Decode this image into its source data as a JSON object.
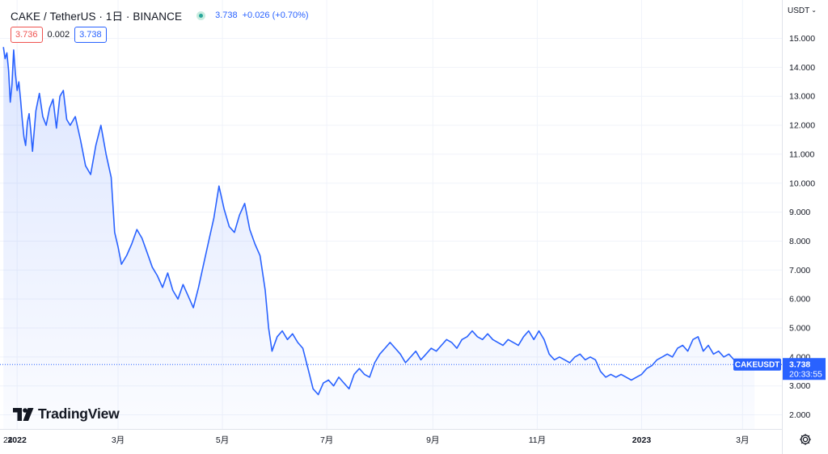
{
  "header": {
    "symbol_title": "CAKE / TetherUS · 1日 · BINANCE",
    "last_price": "3.738",
    "change": "+0.026 (+0.70%)",
    "market_status_icon": "market-open-dot-icon"
  },
  "quote": {
    "sell": "3.736",
    "spread": "0.002",
    "buy": "3.738"
  },
  "price_scale": {
    "currency": "USDT"
  },
  "price_label": {
    "symbol": "CAKEUSDT",
    "price": "3.738",
    "countdown": "20:33:55"
  },
  "branding": {
    "logo_text": "TradingView"
  },
  "colors": {
    "line": "#2962ff",
    "accent": "#2962ff",
    "negative": "#ef5350",
    "grid": "#f0f3fa",
    "axis_text": "#131722"
  },
  "chart_data": {
    "type": "area",
    "title": "CAKE / TetherUS · 1日 · BINANCE",
    "xlabel": "",
    "ylabel": "",
    "ylim": [
      1.5,
      15.5
    ],
    "y_ticks": [
      "15.000",
      "14.000",
      "13.000",
      "12.000",
      "11.000",
      "10.000",
      "9.000",
      "8.000",
      "7.000",
      "6.000",
      "5.000",
      "4.000",
      "3.000",
      "2.000"
    ],
    "y_tick_values": [
      15,
      14,
      13,
      12,
      11,
      10,
      9,
      8,
      7,
      6,
      5,
      4,
      3,
      2
    ],
    "x_ticks": [
      "24",
      "2022",
      "3月",
      "5月",
      "7月",
      "9月",
      "11月",
      "2023",
      "3月"
    ],
    "x_tick_dates": [
      "2021-12-24",
      "2022-01-01",
      "2022-03-01",
      "2022-05-01",
      "2022-07-01",
      "2022-09-01",
      "2022-11-01",
      "2023-01-01",
      "2023-03-01"
    ],
    "grid": true,
    "series": [
      {
        "points": [
          [
            "2021-12-24",
            14.7
          ],
          [
            "2021-12-25",
            14.3
          ],
          [
            "2021-12-26",
            14.5
          ],
          [
            "2021-12-27",
            13.9
          ],
          [
            "2021-12-28",
            12.8
          ],
          [
            "2021-12-29",
            13.4
          ],
          [
            "2021-12-30",
            14.6
          ],
          [
            "2021-12-31",
            13.8
          ],
          [
            "2022-01-01",
            13.2
          ],
          [
            "2022-01-02",
            13.5
          ],
          [
            "2022-01-03",
            12.9
          ],
          [
            "2022-01-04",
            12.2
          ],
          [
            "2022-01-05",
            11.6
          ],
          [
            "2022-01-06",
            11.3
          ],
          [
            "2022-01-07",
            12.1
          ],
          [
            "2022-01-08",
            12.4
          ],
          [
            "2022-01-09",
            11.8
          ],
          [
            "2022-01-10",
            11.1
          ],
          [
            "2022-01-12",
            12.5
          ],
          [
            "2022-01-14",
            13.1
          ],
          [
            "2022-01-16",
            12.3
          ],
          [
            "2022-01-18",
            12.0
          ],
          [
            "2022-01-20",
            12.6
          ],
          [
            "2022-01-22",
            12.9
          ],
          [
            "2022-01-24",
            11.9
          ],
          [
            "2022-01-26",
            13.0
          ],
          [
            "2022-01-28",
            13.2
          ],
          [
            "2022-01-30",
            12.2
          ],
          [
            "2022-02-01",
            12.0
          ],
          [
            "2022-02-04",
            12.3
          ],
          [
            "2022-02-07",
            11.5
          ],
          [
            "2022-02-10",
            10.6
          ],
          [
            "2022-02-13",
            10.3
          ],
          [
            "2022-02-16",
            11.3
          ],
          [
            "2022-02-19",
            12.0
          ],
          [
            "2022-02-22",
            11.0
          ],
          [
            "2022-02-25",
            10.2
          ],
          [
            "2022-02-27",
            8.3
          ],
          [
            "2022-03-01",
            7.8
          ],
          [
            "2022-03-03",
            7.2
          ],
          [
            "2022-03-06",
            7.5
          ],
          [
            "2022-03-09",
            7.9
          ],
          [
            "2022-03-12",
            8.4
          ],
          [
            "2022-03-15",
            8.1
          ],
          [
            "2022-03-18",
            7.6
          ],
          [
            "2022-03-21",
            7.1
          ],
          [
            "2022-03-24",
            6.8
          ],
          [
            "2022-03-27",
            6.4
          ],
          [
            "2022-03-30",
            6.9
          ],
          [
            "2022-04-02",
            6.3
          ],
          [
            "2022-04-05",
            6.0
          ],
          [
            "2022-04-08",
            6.5
          ],
          [
            "2022-04-11",
            6.1
          ],
          [
            "2022-04-14",
            5.7
          ],
          [
            "2022-04-17",
            6.4
          ],
          [
            "2022-04-20",
            7.2
          ],
          [
            "2022-04-23",
            8.0
          ],
          [
            "2022-04-26",
            8.8
          ],
          [
            "2022-04-29",
            9.9
          ],
          [
            "2022-05-02",
            9.1
          ],
          [
            "2022-05-05",
            8.5
          ],
          [
            "2022-05-08",
            8.3
          ],
          [
            "2022-05-11",
            8.9
          ],
          [
            "2022-05-14",
            9.3
          ],
          [
            "2022-05-17",
            8.4
          ],
          [
            "2022-05-20",
            7.9
          ],
          [
            "2022-05-23",
            7.5
          ],
          [
            "2022-05-26",
            6.3
          ],
          [
            "2022-05-28",
            5.0
          ],
          [
            "2022-05-30",
            4.2
          ],
          [
            "2022-06-02",
            4.7
          ],
          [
            "2022-06-05",
            4.9
          ],
          [
            "2022-06-08",
            4.6
          ],
          [
            "2022-06-11",
            4.8
          ],
          [
            "2022-06-14",
            4.5
          ],
          [
            "2022-06-17",
            4.3
          ],
          [
            "2022-06-20",
            3.6
          ],
          [
            "2022-06-23",
            2.9
          ],
          [
            "2022-06-26",
            2.7
          ],
          [
            "2022-06-29",
            3.1
          ],
          [
            "2022-07-02",
            3.2
          ],
          [
            "2022-07-05",
            3.0
          ],
          [
            "2022-07-08",
            3.3
          ],
          [
            "2022-07-11",
            3.1
          ],
          [
            "2022-07-14",
            2.9
          ],
          [
            "2022-07-17",
            3.4
          ],
          [
            "2022-07-20",
            3.6
          ],
          [
            "2022-07-23",
            3.4
          ],
          [
            "2022-07-26",
            3.3
          ],
          [
            "2022-07-29",
            3.8
          ],
          [
            "2022-08-01",
            4.1
          ],
          [
            "2022-08-04",
            4.3
          ],
          [
            "2022-08-07",
            4.5
          ],
          [
            "2022-08-10",
            4.3
          ],
          [
            "2022-08-13",
            4.1
          ],
          [
            "2022-08-16",
            3.8
          ],
          [
            "2022-08-19",
            4.0
          ],
          [
            "2022-08-22",
            4.2
          ],
          [
            "2022-08-25",
            3.9
          ],
          [
            "2022-08-28",
            4.1
          ],
          [
            "2022-08-31",
            4.3
          ],
          [
            "2022-09-03",
            4.2
          ],
          [
            "2022-09-06",
            4.4
          ],
          [
            "2022-09-09",
            4.6
          ],
          [
            "2022-09-12",
            4.5
          ],
          [
            "2022-09-15",
            4.3
          ],
          [
            "2022-09-18",
            4.6
          ],
          [
            "2022-09-21",
            4.7
          ],
          [
            "2022-09-24",
            4.9
          ],
          [
            "2022-09-27",
            4.7
          ],
          [
            "2022-09-30",
            4.6
          ],
          [
            "2022-10-03",
            4.8
          ],
          [
            "2022-10-06",
            4.6
          ],
          [
            "2022-10-09",
            4.5
          ],
          [
            "2022-10-12",
            4.4
          ],
          [
            "2022-10-15",
            4.6
          ],
          [
            "2022-10-18",
            4.5
          ],
          [
            "2022-10-21",
            4.4
          ],
          [
            "2022-10-24",
            4.7
          ],
          [
            "2022-10-27",
            4.9
          ],
          [
            "2022-10-30",
            4.6
          ],
          [
            "2022-11-02",
            4.9
          ],
          [
            "2022-11-05",
            4.6
          ],
          [
            "2022-11-08",
            4.1
          ],
          [
            "2022-11-11",
            3.9
          ],
          [
            "2022-11-14",
            4.0
          ],
          [
            "2022-11-17",
            3.9
          ],
          [
            "2022-11-20",
            3.8
          ],
          [
            "2022-11-23",
            4.0
          ],
          [
            "2022-11-26",
            4.1
          ],
          [
            "2022-11-29",
            3.9
          ],
          [
            "2022-12-02",
            4.0
          ],
          [
            "2022-12-05",
            3.9
          ],
          [
            "2022-12-08",
            3.5
          ],
          [
            "2022-12-11",
            3.3
          ],
          [
            "2022-12-14",
            3.4
          ],
          [
            "2022-12-17",
            3.3
          ],
          [
            "2022-12-20",
            3.4
          ],
          [
            "2022-12-23",
            3.3
          ],
          [
            "2022-12-26",
            3.2
          ],
          [
            "2022-12-29",
            3.3
          ],
          [
            "2023-01-01",
            3.4
          ],
          [
            "2023-01-04",
            3.6
          ],
          [
            "2023-01-07",
            3.7
          ],
          [
            "2023-01-10",
            3.9
          ],
          [
            "2023-01-13",
            4.0
          ],
          [
            "2023-01-16",
            4.1
          ],
          [
            "2023-01-19",
            4.0
          ],
          [
            "2023-01-22",
            4.3
          ],
          [
            "2023-01-25",
            4.4
          ],
          [
            "2023-01-28",
            4.2
          ],
          [
            "2023-01-31",
            4.6
          ],
          [
            "2023-02-03",
            4.7
          ],
          [
            "2023-02-06",
            4.2
          ],
          [
            "2023-02-09",
            4.4
          ],
          [
            "2023-02-12",
            4.1
          ],
          [
            "2023-02-15",
            4.2
          ],
          [
            "2023-02-18",
            4.0
          ],
          [
            "2023-02-21",
            4.1
          ],
          [
            "2023-02-24",
            3.9
          ],
          [
            "2023-02-27",
            3.85
          ],
          [
            "2023-03-02",
            3.76
          ],
          [
            "2023-03-05",
            3.74
          ],
          [
            "2023-03-08",
            3.738
          ]
        ]
      }
    ]
  }
}
